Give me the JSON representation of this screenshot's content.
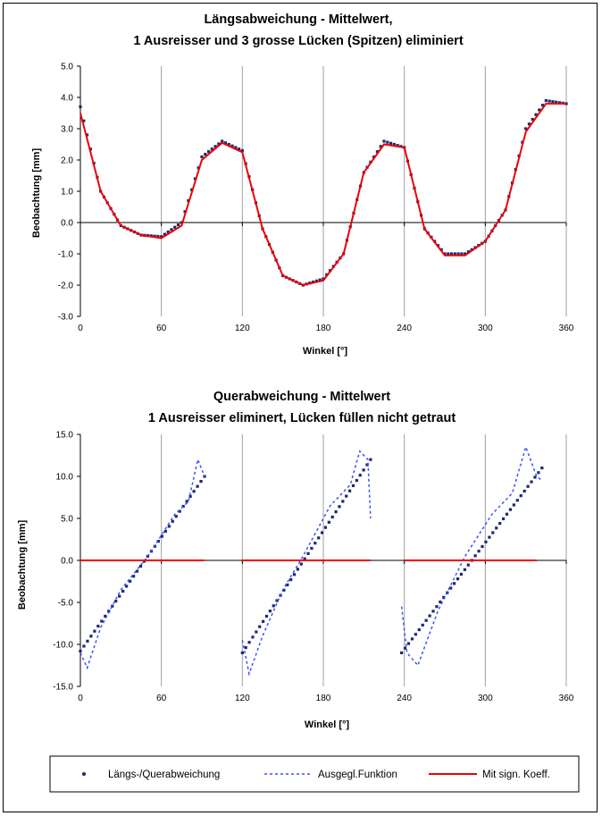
{
  "legend": {
    "points": "Längs-/Querabweichung",
    "dashed": "Ausgegl.Funktion",
    "red": "Mit sign. Koeff."
  },
  "colors": {
    "points": "#1b2a6b",
    "dashed": "#3a50ff",
    "red": "#ee0000",
    "grid": "#a0a0a0",
    "zero": "#000000"
  },
  "chart_data": [
    {
      "type": "line",
      "title": "Längsabweichung - Mittelwert,",
      "subtitle": "1 Ausreisser und 3 grosse Lücken (Spitzen) eliminiert",
      "xlabel": "Winkel [°]",
      "ylabel": "Beobachtung [mm]",
      "xlim": [
        0,
        360
      ],
      "ylim": [
        -3,
        5
      ],
      "x_ticks": [
        0,
        60,
        120,
        180,
        240,
        300,
        360
      ],
      "y_ticks": [
        "5.0",
        "4.0",
        "3.0",
        "2.0",
        "1.0",
        "0.0",
        "-1.0",
        "-2.0",
        "-3.0"
      ],
      "grid": "vertical",
      "series": [
        {
          "kind": "points",
          "x": [
            0,
            15,
            30,
            45,
            60,
            75,
            90,
            105,
            120,
            135,
            150,
            165,
            180,
            195,
            210,
            225,
            240,
            255,
            270,
            285,
            300,
            315,
            330,
            345,
            360
          ],
          "y": [
            3.7,
            1.0,
            -0.1,
            -0.4,
            -0.45,
            0.0,
            2.1,
            2.6,
            2.3,
            -0.2,
            -1.7,
            -2.0,
            -1.8,
            -1.0,
            1.6,
            2.6,
            2.4,
            -0.2,
            -1.0,
            -1.0,
            -0.6,
            0.4,
            3.0,
            3.9,
            3.8
          ]
        },
        {
          "kind": "line",
          "x": [
            0,
            15,
            30,
            45,
            60,
            75,
            90,
            105,
            120,
            135,
            150,
            165,
            180,
            195,
            210,
            225,
            240,
            255,
            270,
            285,
            300,
            315,
            330,
            345,
            360
          ],
          "y": [
            3.5,
            1.0,
            -0.1,
            -0.4,
            -0.5,
            -0.1,
            2.0,
            2.55,
            2.25,
            -0.2,
            -1.7,
            -2.0,
            -1.85,
            -1.0,
            1.6,
            2.5,
            2.4,
            -0.2,
            -1.05,
            -1.05,
            -0.6,
            0.4,
            2.9,
            3.8,
            3.8
          ]
        }
      ]
    },
    {
      "type": "line",
      "title": "Querabweichung - Mittelwert",
      "subtitle": "1 Ausreisser eliminert, Lücken füllen nicht getraut",
      "xlabel": "Winkel [°]",
      "ylabel": "Beobachtung [mm]",
      "xlim": [
        0,
        360
      ],
      "ylim": [
        -15,
        15
      ],
      "x_ticks": [
        0,
        60,
        120,
        180,
        240,
        300,
        360
      ],
      "y_ticks": [
        "15.0",
        "10.0",
        "5.0",
        "0.0",
        "-5.0",
        "-10.0",
        "-15.0"
      ],
      "grid": "vertical",
      "series": [
        {
          "kind": "points",
          "segments": [
            {
              "x": [
                0,
                92
              ],
              "y": [
                -10.8,
                10.0
              ]
            },
            {
              "x": [
                120,
                215
              ],
              "y": [
                -11.0,
                12.0
              ]
            },
            {
              "x": [
                238,
                342
              ],
              "y": [
                -11.0,
                11.0
              ]
            }
          ]
        },
        {
          "kind": "dashed",
          "segments": [
            {
              "x": [
                0,
                5,
                15,
                30,
                50,
                70,
                80,
                87,
                92
              ],
              "y": [
                -11,
                -12.8,
                -8,
                -3.5,
                0.5,
                5.5,
                7,
                12,
                10
              ]
            },
            {
              "x": [
                120,
                125,
                135,
                150,
                165,
                185,
                200,
                207,
                213,
                215
              ],
              "y": [
                -9.5,
                -13.5,
                -9,
                -3.5,
                0.5,
                6.5,
                9,
                13,
                12,
                5
              ]
            },
            {
              "x": [
                238,
                242,
                250,
                265,
                285,
                305,
                320,
                330,
                338,
                342
              ],
              "y": [
                -5.5,
                -11,
                -12.5,
                -6,
                0.5,
                5.5,
                8,
                13.5,
                10,
                9.5
              ]
            }
          ]
        },
        {
          "kind": "line",
          "segments": [
            {
              "x": [
                0,
                92
              ],
              "y": [
                0,
                0
              ]
            },
            {
              "x": [
                120,
                215
              ],
              "y": [
                0,
                0
              ]
            },
            {
              "x": [
                240,
                338
              ],
              "y": [
                0,
                0
              ]
            }
          ]
        }
      ]
    }
  ]
}
